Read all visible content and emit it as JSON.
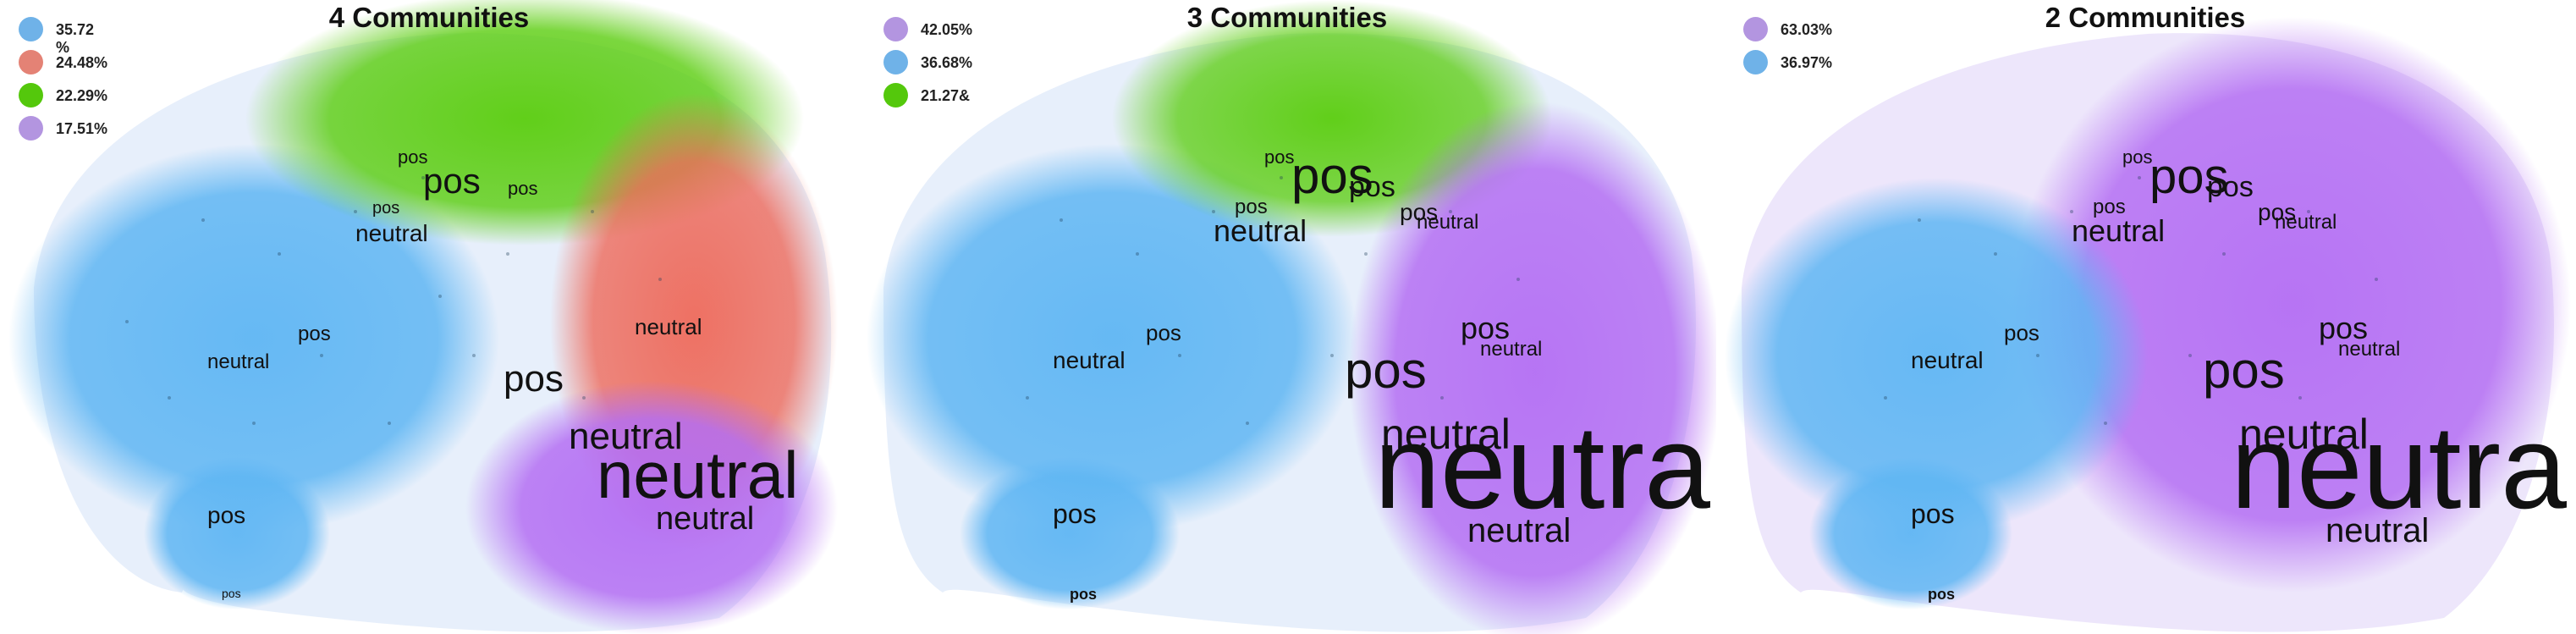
{
  "panels": [
    {
      "title": "4 Communities",
      "legend": [
        {
          "label": "35.72 %",
          "color": "#6fb2e8"
        },
        {
          "label": "24.48%",
          "color": "#e48275"
        },
        {
          "label": "22.29%",
          "color": "#54c80c"
        },
        {
          "label": "17.51%",
          "color": "#b395e0"
        }
      ],
      "community_colors": {
        "blue": "#5fb6f3",
        "green": "#5acd0e",
        "red": "#ee6a5b",
        "purple": "#b46ef3"
      },
      "labels": [
        {
          "text": "pos"
        },
        {
          "text": "pos"
        },
        {
          "text": "neutral"
        },
        {
          "text": "pos"
        },
        {
          "text": "pos"
        },
        {
          "text": "neutral"
        },
        {
          "text": "pos"
        },
        {
          "text": "neutral"
        },
        {
          "text": "pos"
        },
        {
          "text": "neutral"
        },
        {
          "text": "neutral"
        },
        {
          "text": "neutral"
        },
        {
          "text": "pos"
        },
        {
          "text": "pos"
        }
      ]
    },
    {
      "title": "3 Communities",
      "legend": [
        {
          "label": "42.05%",
          "color": "#b395e0"
        },
        {
          "label": "36.68%",
          "color": "#6fb2e8"
        },
        {
          "label": "21.27&",
          "color": "#54c80c"
        }
      ],
      "community_colors": {
        "blue": "#5fb6f3",
        "green": "#5acd0e",
        "purple": "#b46ef3"
      },
      "labels": [
        {
          "text": "pos"
        },
        {
          "text": "pos"
        },
        {
          "text": "pos"
        },
        {
          "text": "neutral"
        },
        {
          "text": "pos"
        },
        {
          "text": "neutral"
        },
        {
          "text": "pos"
        },
        {
          "text": "neutral"
        },
        {
          "text": "pos"
        },
        {
          "text": "pos"
        },
        {
          "text": "neutral"
        },
        {
          "text": "neutral"
        },
        {
          "text": "neutral"
        },
        {
          "text": "neutral"
        },
        {
          "text": "pos"
        },
        {
          "text": "pos"
        }
      ]
    },
    {
      "title": "2 Communities",
      "legend": [
        {
          "label": "63.03%",
          "color": "#b395e0"
        },
        {
          "label": "36.97%",
          "color": "#6fb2e8"
        }
      ],
      "community_colors": {
        "blue": "#5fb6f3",
        "purple": "#b46ef3"
      },
      "labels": [
        {
          "text": "pos"
        },
        {
          "text": "pos"
        },
        {
          "text": "pos"
        },
        {
          "text": "neutral"
        },
        {
          "text": "pos"
        },
        {
          "text": "neutral"
        },
        {
          "text": "pos"
        },
        {
          "text": "neutral"
        },
        {
          "text": "pos"
        },
        {
          "text": "pos"
        },
        {
          "text": "neutral"
        },
        {
          "text": "neutral"
        },
        {
          "text": "neutral"
        },
        {
          "text": "neutral"
        },
        {
          "text": "pos"
        },
        {
          "text": "pos"
        }
      ]
    }
  ]
}
